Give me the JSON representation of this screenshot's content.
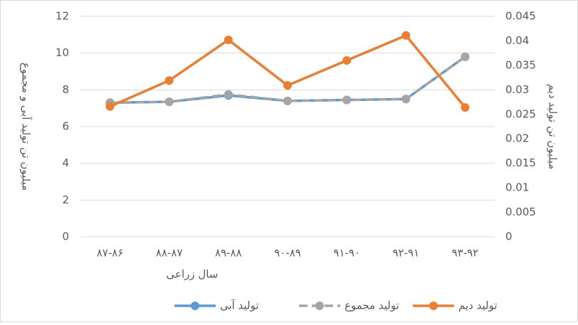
{
  "chart_data": {
    "type": "line",
    "categories": [
      "۸۷-۸۶",
      "۸۸-۸۷",
      "۸۹-۸۸",
      "۹۰-۸۹",
      "۹۱-۹۰",
      "۹۲-۹۱",
      "۹۳-۹۲"
    ],
    "x_label": "سال زراعی",
    "y_label": "میلیون تن تولید آبی و مجموع",
    "y2_label": "میلیون تن تولید دیم",
    "ylim": [
      0,
      12
    ],
    "yticks": [
      0,
      2,
      4,
      6,
      8,
      10,
      12
    ],
    "y2lim": [
      0,
      0.045
    ],
    "y2ticks": [
      0,
      0.005,
      0.01,
      0.015,
      0.02,
      0.025,
      0.03,
      0.035,
      0.04,
      0.045
    ],
    "grid": true,
    "series": [
      {
        "name": "تولید آبی",
        "color": "#5b9bd5",
        "values": [
          7.3,
          7.35,
          7.7,
          7.4,
          7.45,
          7.5,
          9.8
        ]
      },
      {
        "name": "تولید مجموع",
        "color": "#a5a5a5",
        "dashed": true,
        "values": [
          7.3,
          7.35,
          7.75,
          7.4,
          7.45,
          7.5,
          9.8
        ]
      },
      {
        "name": "تولید دیم",
        "color": "#ed7d31",
        "axis": "y2",
        "values": [
          0.0266,
          0.0319,
          0.0402,
          0.0309,
          0.036,
          0.0411,
          0.0264
        ]
      }
    ]
  }
}
